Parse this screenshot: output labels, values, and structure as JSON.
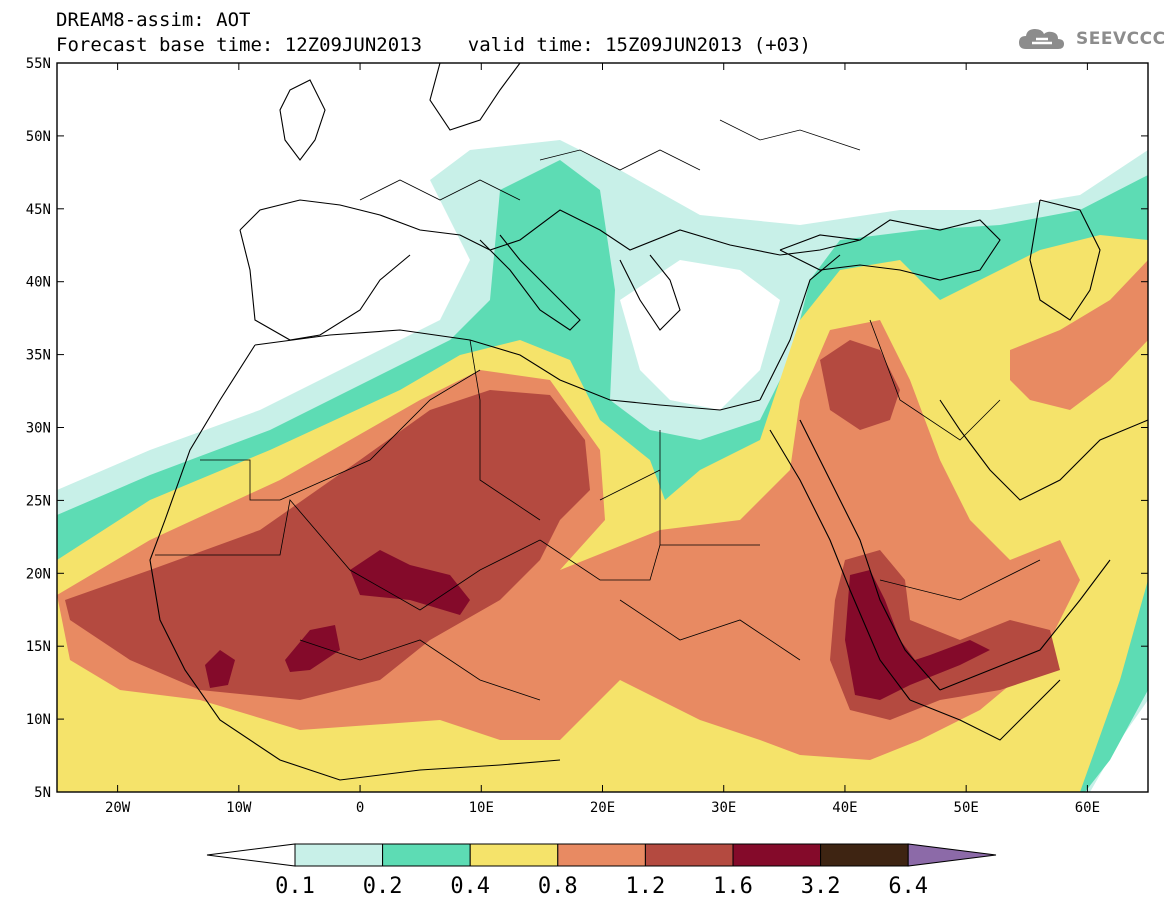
{
  "header": {
    "title_line1": "DREAM8-assim: AOT",
    "title_line2": "Forecast base time: 12Z09JUN2013    valid time: 15Z09JUN2013 (+03)",
    "logo_text": "SEEVCCC"
  },
  "map": {
    "lat_ticks": [
      "55N",
      "50N",
      "45N",
      "40N",
      "35N",
      "30N",
      "25N",
      "20N",
      "15N",
      "10N",
      "5N"
    ],
    "lon_ticks": [
      "20W",
      "10W",
      "0",
      "10E",
      "20E",
      "30E",
      "40E",
      "50E",
      "60E"
    ],
    "lat_range": [
      5,
      55
    ],
    "lon_range": [
      -25,
      65
    ],
    "variable": "AOT"
  },
  "colorbar": {
    "labels": [
      "0.1",
      "0.2",
      "0.4",
      "0.8",
      "1.2",
      "1.6",
      "3.2",
      "6.4"
    ],
    "colors": [
      "#ffffff",
      "#c8f0e8",
      "#5ddcb4",
      "#f5e36a",
      "#e88a62",
      "#b44a40",
      "#840a2a",
      "#3e2412",
      "#8c6aa8"
    ]
  }
}
